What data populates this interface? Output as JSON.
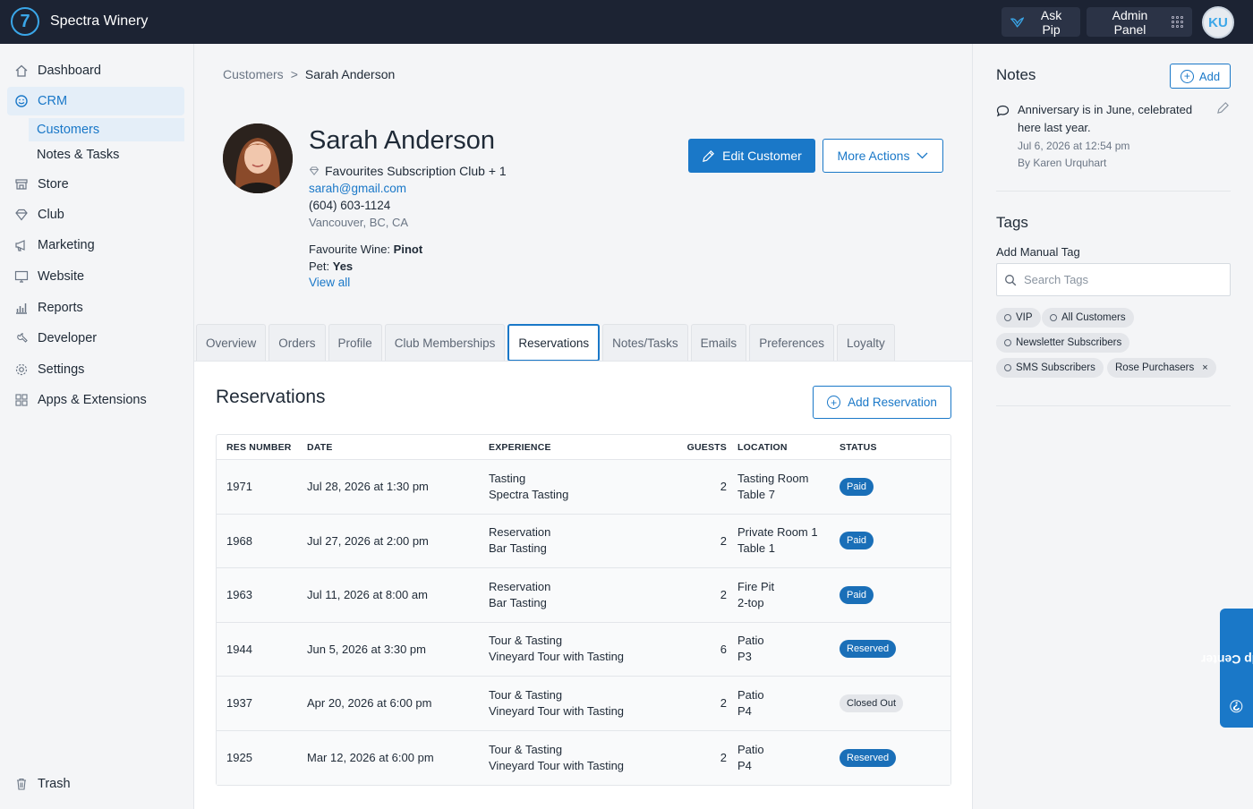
{
  "app": {
    "brand": "Spectra Winery",
    "logo_glyph": "7"
  },
  "topbar": {
    "ask_pip": "Ask Pip",
    "admin_panel": "Admin Panel",
    "avatar_initials": "KU"
  },
  "sidebar": {
    "items": [
      {
        "label": "Dashboard",
        "icon": "home-icon"
      },
      {
        "label": "CRM",
        "icon": "smile-icon"
      },
      {
        "label": "Store",
        "icon": "store-icon"
      },
      {
        "label": "Club",
        "icon": "diamond-icon"
      },
      {
        "label": "Marketing",
        "icon": "megaphone-icon"
      },
      {
        "label": "Website",
        "icon": "monitor-icon"
      },
      {
        "label": "Reports",
        "icon": "bar-chart-icon"
      },
      {
        "label": "Developer",
        "icon": "wrench-icon"
      },
      {
        "label": "Settings",
        "icon": "gear-icon"
      },
      {
        "label": "Apps & Extensions",
        "icon": "apps-icon"
      }
    ],
    "crm_sub": [
      "Customers",
      "Notes & Tasks"
    ],
    "trash": "Trash"
  },
  "breadcrumb": {
    "parent": "Customers",
    "separator": ">",
    "current": "Sarah Anderson"
  },
  "customer": {
    "name": "Sarah Anderson",
    "club": "Favourites Subscription Club + 1",
    "email": "sarah@gmail.com",
    "phone": "(604) 603-1124",
    "address": "Vancouver, BC, CA",
    "fav_label": "Favourite Wine:",
    "fav_value": "Pinot",
    "pet_label": "Pet:",
    "pet_value": "Yes",
    "view_all": "View all"
  },
  "actions": {
    "edit": "Edit Customer",
    "more": "More Actions"
  },
  "tabs": [
    "Overview",
    "Orders",
    "Profile",
    "Club Memberships",
    "Reservations",
    "Notes/Tasks",
    "Emails",
    "Preferences",
    "Loyalty"
  ],
  "active_tab": "Reservations",
  "reservations": {
    "title": "Reservations",
    "add_button": "Add Reservation",
    "columns": [
      "RES NUMBER",
      "DATE",
      "EXPERIENCE",
      "GUESTS",
      "LOCATION",
      "STATUS"
    ],
    "rows": [
      {
        "res": "1971",
        "date": "Jul 28, 2026 at 1:30 pm",
        "exp1": "Tasting",
        "exp2": "Spectra Tasting",
        "guests": "2",
        "loc1": "Tasting Room",
        "loc2": "Table 7",
        "status": "Paid",
        "status_type": "blue"
      },
      {
        "res": "1968",
        "date": "Jul 27, 2026 at 2:00 pm",
        "exp1": "Reservation",
        "exp2": "Bar Tasting",
        "guests": "2",
        "loc1": "Private Room 1",
        "loc2": "Table 1",
        "status": "Paid",
        "status_type": "blue"
      },
      {
        "res": "1963",
        "date": "Jul 11, 2026 at 8:00 am",
        "exp1": "Reservation",
        "exp2": "Bar Tasting",
        "guests": "2",
        "loc1": "Fire Pit",
        "loc2": "2-top",
        "status": "Paid",
        "status_type": "blue"
      },
      {
        "res": "1944",
        "date": "Jun 5, 2026 at 3:30 pm",
        "exp1": "Tour & Tasting",
        "exp2": "Vineyard Tour with Tasting",
        "guests": "6",
        "loc1": "Patio",
        "loc2": "P3",
        "status": "Reserved",
        "status_type": "blue"
      },
      {
        "res": "1937",
        "date": "Apr 20, 2026 at 6:00 pm",
        "exp1": "Tour & Tasting",
        "exp2": "Vineyard Tour with Tasting",
        "guests": "2",
        "loc1": "Patio",
        "loc2": "P4",
        "status": "Closed Out",
        "status_type": "gray"
      },
      {
        "res": "1925",
        "date": "Mar 12, 2026 at 6:00 pm",
        "exp1": "Tour & Tasting",
        "exp2": "Vineyard Tour with Tasting",
        "guests": "2",
        "loc1": "Patio",
        "loc2": "P4",
        "status": "Reserved",
        "status_type": "blue"
      }
    ]
  },
  "notes": {
    "title": "Notes",
    "add": "Add",
    "text": "Anniversary is in June, celebrated here last year.",
    "date": "Jul 6, 2026 at 12:54 pm",
    "by": "By Karen Urquhart"
  },
  "tags": {
    "title": "Tags",
    "manual_label": "Add Manual Tag",
    "search_placeholder": "Search Tags",
    "list": [
      "VIP",
      "All Customers",
      "Newsletter Subscribers",
      "SMS Subscribers",
      "Rose Purchasers"
    ],
    "remove_glyph": "×"
  },
  "help_center": "Help Center",
  "colors": {
    "accent": "#1a78c8",
    "topbar": "#1c2333",
    "badge_blue": "#1a6fb8",
    "badge_gray": "#e4e6ea"
  }
}
